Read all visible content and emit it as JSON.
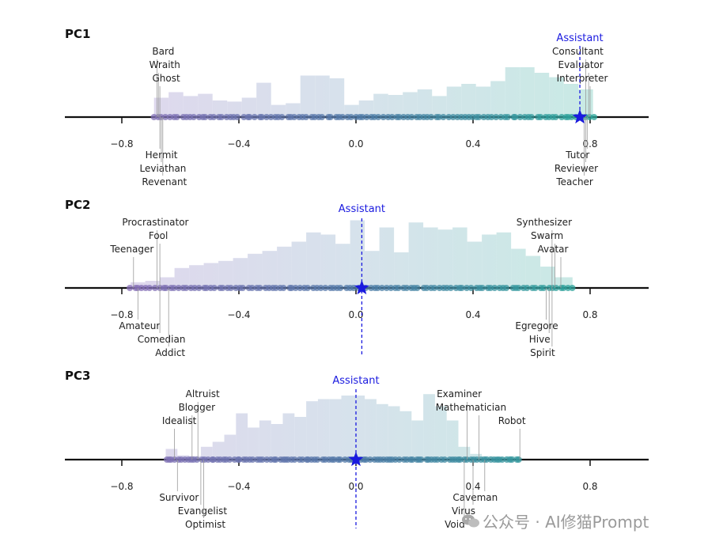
{
  "chart_data": [
    {
      "type": "histogram-strip",
      "title": "PC1",
      "xlim": [
        -1.0,
        1.0
      ],
      "xticks": [
        -0.8,
        -0.4,
        0.0,
        0.4,
        0.8
      ],
      "tick_labels": [
        "−0.8",
        "−0.4",
        "0.0",
        "0.4",
        "0.8"
      ],
      "point_range": [
        -0.69,
        0.81
      ],
      "assistant": {
        "label": "Assistant",
        "value": 0.765
      },
      "hist_bins": [
        [
          -0.69,
          -0.64,
          0.35
        ],
        [
          -0.64,
          -0.59,
          0.45
        ],
        [
          -0.59,
          -0.54,
          0.38
        ],
        [
          -0.54,
          -0.49,
          0.42
        ],
        [
          -0.49,
          -0.44,
          0.3
        ],
        [
          -0.44,
          -0.39,
          0.28
        ],
        [
          -0.39,
          -0.34,
          0.35
        ],
        [
          -0.34,
          -0.29,
          0.62
        ],
        [
          -0.29,
          -0.24,
          0.22
        ],
        [
          -0.24,
          -0.19,
          0.25
        ],
        [
          -0.19,
          -0.14,
          0.75
        ],
        [
          -0.14,
          -0.09,
          0.75
        ],
        [
          -0.09,
          -0.04,
          0.7
        ],
        [
          -0.04,
          0.01,
          0.22
        ],
        [
          0.01,
          0.06,
          0.3
        ],
        [
          0.06,
          0.11,
          0.42
        ],
        [
          0.11,
          0.16,
          0.4
        ],
        [
          0.16,
          0.21,
          0.45
        ],
        [
          0.21,
          0.26,
          0.5
        ],
        [
          0.26,
          0.31,
          0.38
        ],
        [
          0.31,
          0.36,
          0.55
        ],
        [
          0.36,
          0.41,
          0.6
        ],
        [
          0.41,
          0.46,
          0.55
        ],
        [
          0.46,
          0.51,
          0.65
        ],
        [
          0.51,
          0.56,
          0.9
        ],
        [
          0.56,
          0.61,
          0.9
        ],
        [
          0.61,
          0.66,
          0.8
        ],
        [
          0.66,
          0.71,
          0.72
        ],
        [
          0.71,
          0.76,
          0.6
        ],
        [
          0.76,
          0.81,
          0.5
        ]
      ],
      "labels_above": [
        {
          "text": "Bard",
          "value": -0.68
        },
        {
          "text": "Wraith",
          "value": -0.675
        },
        {
          "text": "Ghost",
          "value": -0.67
        }
      ],
      "labels_above_right": [
        {
          "text": "Consultant",
          "value": 0.785
        },
        {
          "text": "Evaluator",
          "value": 0.795
        },
        {
          "text": "Interpreter",
          "value": 0.8
        }
      ],
      "labels_below": [
        {
          "text": "Hermit",
          "value": -0.67
        },
        {
          "text": "Leviathan",
          "value": -0.665
        },
        {
          "text": "Revenant",
          "value": -0.66
        }
      ],
      "labels_below_right": [
        {
          "text": "Tutor",
          "value": 0.79
        },
        {
          "text": "Reviewer",
          "value": 0.785
        },
        {
          "text": "Teacher",
          "value": 0.78
        }
      ]
    },
    {
      "type": "histogram-strip",
      "title": "PC2",
      "xlim": [
        -1.0,
        1.0
      ],
      "xticks": [
        -0.8,
        -0.4,
        0.0,
        0.4,
        0.8
      ],
      "tick_labels": [
        "−0.8",
        "−0.4",
        "0.0",
        "0.4",
        "0.8"
      ],
      "point_range": [
        -0.77,
        0.74
      ],
      "assistant": {
        "label": "Assistant",
        "value": 0.02
      },
      "hist_bins": [
        [
          -0.77,
          -0.72,
          0.08
        ],
        [
          -0.72,
          -0.67,
          0.1
        ],
        [
          -0.67,
          -0.62,
          0.15
        ],
        [
          -0.62,
          -0.57,
          0.28
        ],
        [
          -0.57,
          -0.52,
          0.32
        ],
        [
          -0.52,
          -0.47,
          0.35
        ],
        [
          -0.47,
          -0.42,
          0.38
        ],
        [
          -0.42,
          -0.37,
          0.42
        ],
        [
          -0.37,
          -0.32,
          0.48
        ],
        [
          -0.32,
          -0.27,
          0.52
        ],
        [
          -0.27,
          -0.22,
          0.58
        ],
        [
          -0.22,
          -0.17,
          0.65
        ],
        [
          -0.17,
          -0.12,
          0.78
        ],
        [
          -0.12,
          -0.07,
          0.75
        ],
        [
          -0.07,
          -0.02,
          0.62
        ],
        [
          -0.02,
          0.03,
          0.95
        ],
        [
          0.03,
          0.08,
          0.52
        ],
        [
          0.08,
          0.13,
          0.85
        ],
        [
          0.13,
          0.18,
          0.5
        ],
        [
          0.18,
          0.23,
          0.92
        ],
        [
          0.23,
          0.28,
          0.85
        ],
        [
          0.28,
          0.33,
          0.82
        ],
        [
          0.33,
          0.38,
          0.85
        ],
        [
          0.38,
          0.43,
          0.65
        ],
        [
          0.43,
          0.48,
          0.75
        ],
        [
          0.48,
          0.53,
          0.78
        ],
        [
          0.53,
          0.58,
          0.55
        ],
        [
          0.58,
          0.63,
          0.45
        ],
        [
          0.63,
          0.68,
          0.3
        ],
        [
          0.68,
          0.74,
          0.15
        ]
      ],
      "labels_above": [
        {
          "text": "Procrastinator",
          "value": -0.68
        },
        {
          "text": "Fool",
          "value": -0.67
        },
        {
          "text": "Teenager",
          "value": -0.76
        }
      ],
      "labels_above_right": [
        {
          "text": "Synthesizer",
          "value": 0.67
        },
        {
          "text": "Swarm",
          "value": 0.68
        },
        {
          "text": "Avatar",
          "value": 0.7
        }
      ],
      "labels_below": [
        {
          "text": "Amateur",
          "value": -0.745
        },
        {
          "text": "Comedian",
          "value": -0.67
        },
        {
          "text": "Addict",
          "value": -0.64
        }
      ],
      "labels_below_right": [
        {
          "text": "Egregore",
          "value": 0.65
        },
        {
          "text": "Hive",
          "value": 0.66
        },
        {
          "text": "Spirit",
          "value": 0.67
        }
      ]
    },
    {
      "type": "histogram-strip",
      "title": "PC3",
      "xlim": [
        -1.0,
        1.0
      ],
      "xticks": [
        -0.8,
        -0.4,
        0.0,
        0.4,
        0.8
      ],
      "tick_labels": [
        "−0.8",
        "−0.4",
        "0.0",
        "0.4",
        "0.8"
      ],
      "point_range": [
        -0.65,
        0.56
      ],
      "assistant": {
        "label": "Assistant",
        "value": 0.0
      },
      "hist_bins": [
        [
          -0.65,
          -0.61,
          0.15
        ],
        [
          -0.61,
          -0.57,
          0.06
        ],
        [
          -0.57,
          -0.53,
          0.05
        ],
        [
          -0.53,
          -0.49,
          0.18
        ],
        [
          -0.49,
          -0.45,
          0.25
        ],
        [
          -0.45,
          -0.41,
          0.35
        ],
        [
          -0.41,
          -0.37,
          0.65
        ],
        [
          -0.37,
          -0.33,
          0.45
        ],
        [
          -0.33,
          -0.29,
          0.55
        ],
        [
          -0.29,
          -0.25,
          0.5
        ],
        [
          -0.25,
          -0.21,
          0.65
        ],
        [
          -0.21,
          -0.17,
          0.6
        ],
        [
          -0.17,
          -0.13,
          0.82
        ],
        [
          -0.13,
          -0.09,
          0.85
        ],
        [
          -0.09,
          -0.05,
          0.85
        ],
        [
          -0.05,
          -0.01,
          0.9
        ],
        [
          -0.01,
          0.03,
          0.9
        ],
        [
          0.03,
          0.07,
          0.85
        ],
        [
          0.07,
          0.11,
          0.78
        ],
        [
          0.11,
          0.15,
          0.75
        ],
        [
          0.15,
          0.19,
          0.68
        ],
        [
          0.19,
          0.23,
          0.55
        ],
        [
          0.23,
          0.27,
          0.92
        ],
        [
          0.27,
          0.31,
          0.75
        ],
        [
          0.31,
          0.35,
          0.55
        ],
        [
          0.35,
          0.39,
          0.18
        ],
        [
          0.39,
          0.43,
          0.08
        ],
        [
          0.43,
          0.47,
          0.05
        ],
        [
          0.47,
          0.51,
          0.04
        ],
        [
          0.51,
          0.56,
          0.05
        ]
      ],
      "labels_above": [
        {
          "text": "Altruist",
          "value": -0.54
        },
        {
          "text": "Blogger",
          "value": -0.56
        },
        {
          "text": "Idealist",
          "value": -0.62
        }
      ],
      "labels_above_right": [
        {
          "text": "Examiner",
          "value": 0.38
        },
        {
          "text": "Mathematician",
          "value": 0.42
        },
        {
          "text": "Robot",
          "value": 0.56
        }
      ],
      "labels_below": [
        {
          "text": "Survivor",
          "value": -0.61
        },
        {
          "text": "Evangelist",
          "value": -0.53
        },
        {
          "text": "Optimist",
          "value": -0.52
        }
      ],
      "labels_below_right": [
        {
          "text": "Caveman",
          "value": 0.44
        },
        {
          "text": "Virus",
          "value": 0.4
        },
        {
          "text": "Void",
          "value": 0.37
        }
      ]
    }
  ],
  "colors": {
    "left": "#8a6fb8",
    "right": "#2aa69a",
    "assistant": "#1a1adf",
    "axis": "#111111"
  },
  "watermark": {
    "icon": "wechat-icon",
    "text": "公众号 · AI修猫Prompt"
  }
}
